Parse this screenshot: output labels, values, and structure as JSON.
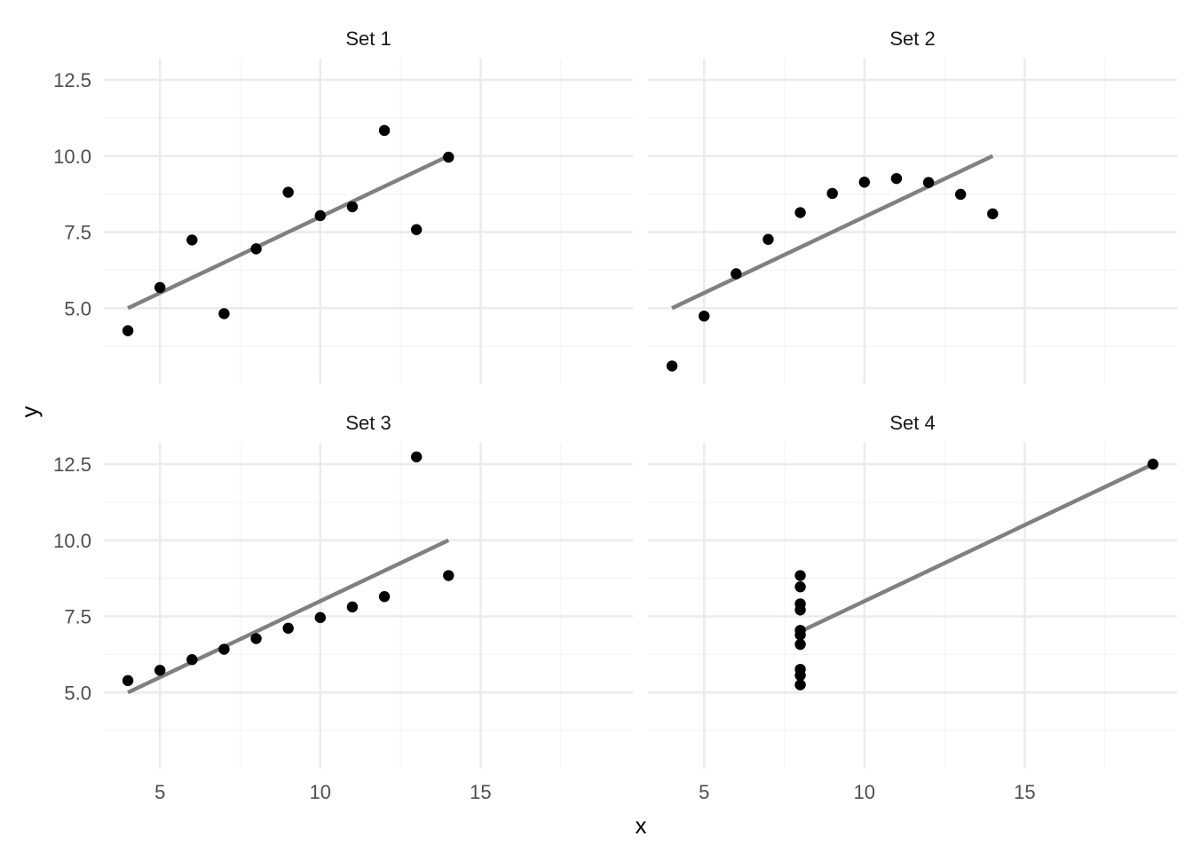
{
  "chart_data": {
    "type": "scatter",
    "xlabel": "x",
    "ylabel": "y",
    "xlim": [
      3.25,
      19.75
    ],
    "ylim": [
      2.5,
      13.2
    ],
    "x_ticks": [
      5,
      10,
      15
    ],
    "x_tick_labels": [
      "5",
      "10",
      "15"
    ],
    "y_ticks": [
      5.0,
      7.5,
      10.0,
      12.5
    ],
    "y_tick_labels": [
      "5.0",
      "7.5",
      "10.0",
      "12.5"
    ],
    "grid": true,
    "colors": {
      "points": "#000000",
      "fit_line": "#808080",
      "grid_major": "#ebebeb",
      "grid_minor": "#f5f5f5"
    },
    "panels": [
      {
        "title": "Set 1",
        "x": [
          10,
          8,
          13,
          9,
          11,
          14,
          6,
          4,
          12,
          7,
          5
        ],
        "y": [
          8.04,
          6.95,
          7.58,
          8.81,
          8.33,
          9.96,
          7.24,
          4.26,
          10.84,
          4.82,
          5.68
        ],
        "fit": [
          [
            4,
            5.0
          ],
          [
            14,
            10.0
          ]
        ]
      },
      {
        "title": "Set 2",
        "x": [
          10,
          8,
          13,
          9,
          11,
          14,
          6,
          4,
          12,
          7,
          5
        ],
        "y": [
          9.14,
          8.14,
          8.74,
          8.77,
          9.26,
          8.1,
          6.13,
          3.1,
          9.13,
          7.26,
          4.74
        ],
        "fit": [
          [
            4,
            5.0
          ],
          [
            14,
            10.0
          ]
        ]
      },
      {
        "title": "Set 3",
        "x": [
          10,
          8,
          13,
          9,
          11,
          14,
          6,
          4,
          12,
          7,
          5
        ],
        "y": [
          7.46,
          6.77,
          12.74,
          7.11,
          7.81,
          8.84,
          6.08,
          5.39,
          8.15,
          6.42,
          5.73
        ],
        "fit": [
          [
            4,
            5.0
          ],
          [
            14,
            10.0
          ]
        ]
      },
      {
        "title": "Set 4",
        "x": [
          8,
          8,
          8,
          8,
          8,
          8,
          8,
          19,
          8,
          8,
          8
        ],
        "y": [
          6.58,
          5.76,
          7.71,
          8.84,
          8.47,
          7.04,
          5.25,
          12.5,
          5.56,
          7.91,
          6.89
        ],
        "fit": [
          [
            8,
            7.0
          ],
          [
            19,
            12.5
          ]
        ]
      }
    ]
  }
}
